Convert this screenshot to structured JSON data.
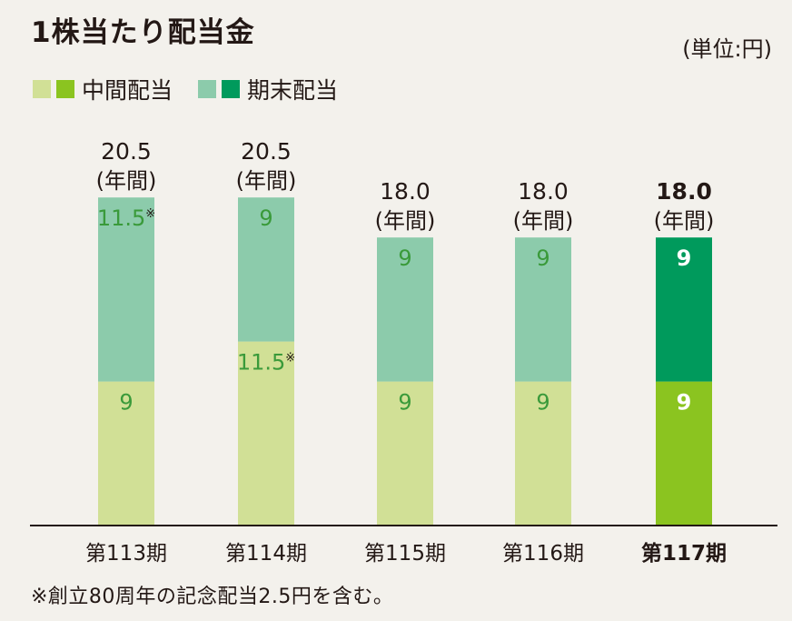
{
  "title": "1株当たり配当金",
  "unit": "(単位:円)",
  "legend": {
    "interim": {
      "label": "中間配当",
      "colors": [
        "#d1e096",
        "#8bc420"
      ]
    },
    "yearend": {
      "label": "期末配当",
      "colors": [
        "#8ccbab",
        "#009a5c"
      ]
    }
  },
  "footnote": "※創立80周年の記念配当2.5円を含む。",
  "chart_data": {
    "type": "bar",
    "stacked": true,
    "categories": [
      "第113期",
      "第114期",
      "第115期",
      "第116期",
      "第117期"
    ],
    "series": [
      {
        "name": "中間配当",
        "values": [
          9,
          11.5,
          9,
          9,
          9
        ],
        "labels": [
          "9",
          "11.5※",
          "9",
          "9",
          "9"
        ],
        "color": "#d1e096",
        "highlight_color": "#8bc420"
      },
      {
        "name": "期末配当",
        "values": [
          11.5,
          9,
          9,
          9,
          9
        ],
        "labels": [
          "11.5※",
          "9",
          "9",
          "9",
          "9"
        ],
        "color": "#8ccbab",
        "highlight_color": "#009a5c"
      }
    ],
    "totals": [
      "20.5",
      "20.5",
      "18.0",
      "18.0",
      "18.0"
    ],
    "total_suffix": "(年間)",
    "highlight_index": 4,
    "label_color": "#3a9a3a",
    "highlight_label_color": "#ffffff",
    "grid": false,
    "legend_position": "top-left"
  }
}
